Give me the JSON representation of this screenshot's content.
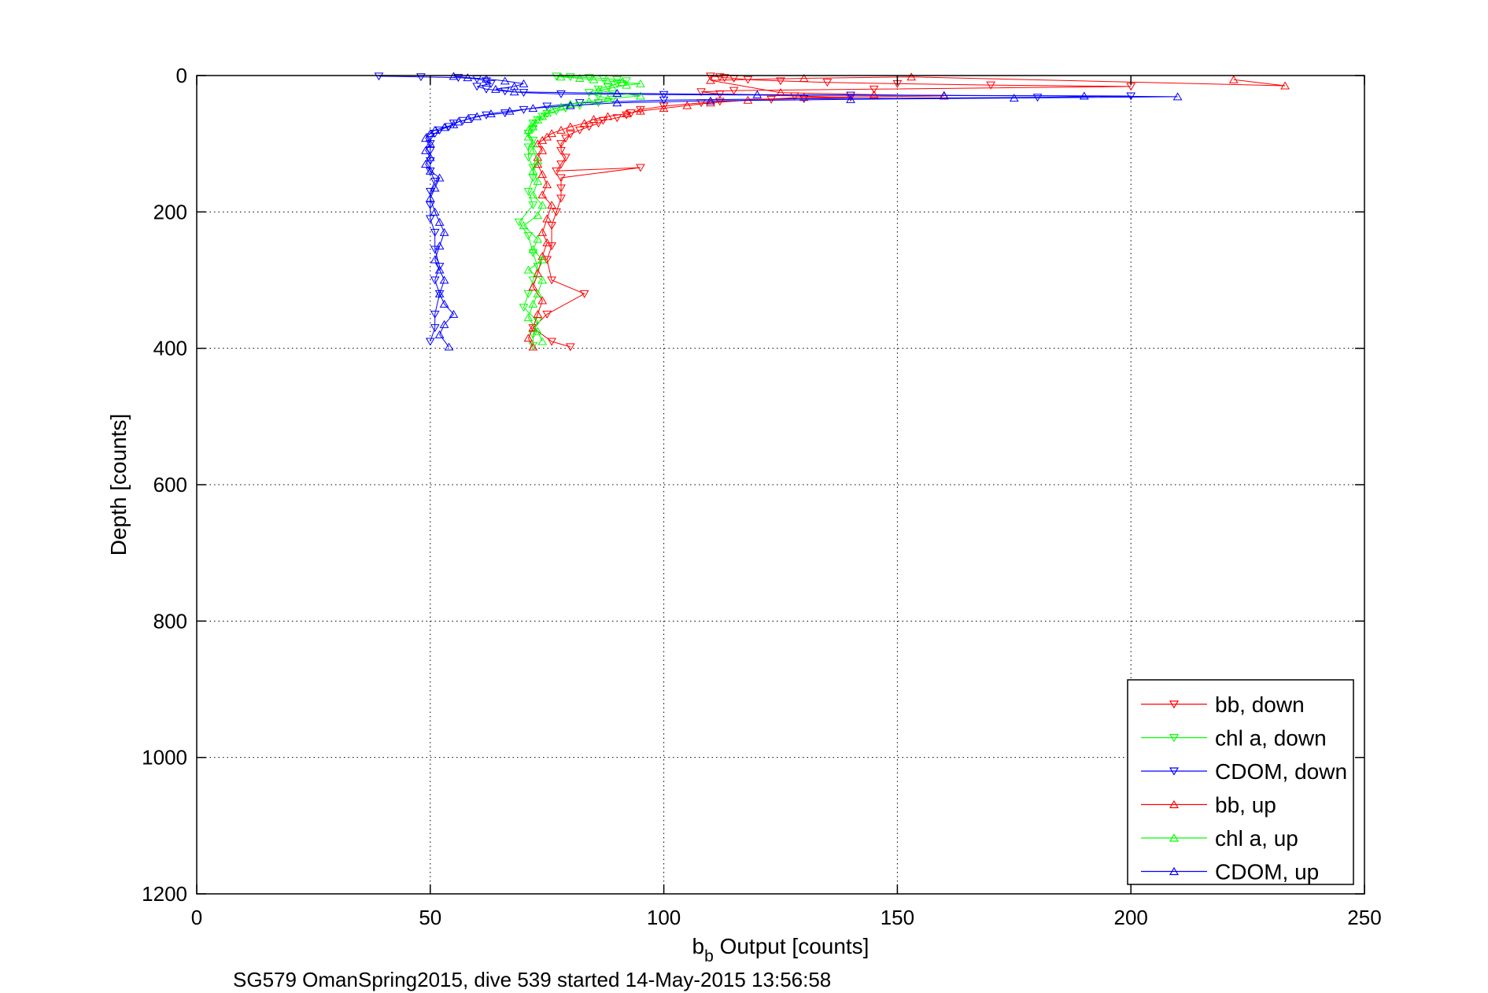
{
  "chart_data": {
    "type": "scatter",
    "xlabel_main": "b",
    "xlabel_sub": "b",
    "xlabel_rest": " Output [counts]",
    "ylabel": "Depth [counts]",
    "caption": "SG579 OmanSpring2015, dive 539 started 14-May-2015 13:56:58",
    "xlim": [
      0,
      250
    ],
    "ylim": [
      0,
      1200
    ],
    "y_reversed": true,
    "grid": true,
    "legend_position": "bottom-right",
    "x_ticks": [
      0,
      50,
      100,
      150,
      200,
      250
    ],
    "y_ticks": [
      0,
      200,
      400,
      600,
      800,
      1000,
      1200
    ],
    "series": [
      {
        "name": "bb, down",
        "color": "#ff0000",
        "marker": "triangle-down",
        "points": [
          [
            110,
            1
          ],
          [
            112,
            2
          ],
          [
            113,
            3
          ],
          [
            115,
            4
          ],
          [
            118,
            6
          ],
          [
            125,
            8
          ],
          [
            135,
            10
          ],
          [
            150,
            12
          ],
          [
            170,
            14
          ],
          [
            200,
            16
          ],
          [
            145,
            20
          ],
          [
            115,
            22
          ],
          [
            108,
            24
          ],
          [
            112,
            27
          ],
          [
            128,
            30
          ],
          [
            140,
            32
          ],
          [
            123,
            35
          ],
          [
            112,
            38
          ],
          [
            108,
            40
          ],
          [
            100,
            45
          ],
          [
            95,
            50
          ],
          [
            93,
            55
          ],
          [
            92,
            58
          ],
          [
            90,
            62
          ],
          [
            87,
            66
          ],
          [
            86,
            70
          ],
          [
            84,
            75
          ],
          [
            82,
            80
          ],
          [
            80,
            86
          ],
          [
            79,
            92
          ],
          [
            78,
            100
          ],
          [
            78,
            110
          ],
          [
            79,
            120
          ],
          [
            78,
            130
          ],
          [
            77,
            140
          ],
          [
            95,
            135
          ],
          [
            78,
            150
          ],
          [
            78,
            165
          ],
          [
            78,
            180
          ],
          [
            77,
            200
          ],
          [
            76,
            220
          ],
          [
            76,
            250
          ],
          [
            75,
            270
          ],
          [
            76,
            300
          ],
          [
            83,
            320
          ],
          [
            75,
            350
          ],
          [
            72,
            370
          ],
          [
            76,
            390
          ],
          [
            80,
            398
          ]
        ]
      },
      {
        "name": "chl a, down",
        "color": "#00ff00",
        "marker": "triangle-down",
        "points": [
          [
            77,
            1
          ],
          [
            80,
            2
          ],
          [
            84,
            3
          ],
          [
            87,
            4
          ],
          [
            90,
            6
          ],
          [
            92,
            8
          ],
          [
            90,
            12
          ],
          [
            88,
            16
          ],
          [
            86,
            20
          ],
          [
            84,
            25
          ],
          [
            86,
            30
          ],
          [
            89,
            35
          ],
          [
            86,
            40
          ],
          [
            82,
            44
          ],
          [
            79,
            48
          ],
          [
            77,
            52
          ],
          [
            75,
            56
          ],
          [
            74,
            60
          ],
          [
            73,
            65
          ],
          [
            72,
            70
          ],
          [
            72,
            78
          ],
          [
            71,
            85
          ],
          [
            72,
            95
          ],
          [
            71,
            105
          ],
          [
            71,
            120
          ],
          [
            72,
            135
          ],
          [
            72,
            150
          ],
          [
            71,
            170
          ],
          [
            72,
            190
          ],
          [
            69,
            215
          ],
          [
            71,
            235
          ],
          [
            72,
            260
          ],
          [
            73,
            280
          ],
          [
            72,
            300
          ],
          [
            71,
            320
          ],
          [
            70,
            340
          ],
          [
            73,
            360
          ],
          [
            72,
            380
          ],
          [
            72,
            396
          ]
        ]
      },
      {
        "name": "CDOM, down",
        "color": "#0000ff",
        "marker": "triangle-down",
        "points": [
          [
            39,
            1
          ],
          [
            48,
            2
          ],
          [
            56,
            3
          ],
          [
            60,
            5
          ],
          [
            62,
            8
          ],
          [
            63,
            12
          ],
          [
            60,
            16
          ],
          [
            62,
            20
          ],
          [
            66,
            23
          ],
          [
            70,
            25
          ],
          [
            78,
            27
          ],
          [
            100,
            28
          ],
          [
            140,
            29
          ],
          [
            200,
            30
          ],
          [
            180,
            32
          ],
          [
            130,
            34
          ],
          [
            100,
            36
          ],
          [
            82,
            40
          ],
          [
            75,
            45
          ],
          [
            70,
            50
          ],
          [
            66,
            55
          ],
          [
            62,
            58
          ],
          [
            59,
            62
          ],
          [
            57,
            66
          ],
          [
            55,
            70
          ],
          [
            54,
            75
          ],
          [
            52,
            80
          ],
          [
            51,
            85
          ],
          [
            50,
            90
          ],
          [
            50,
            100
          ],
          [
            50,
            110
          ],
          [
            50,
            125
          ],
          [
            50,
            140
          ],
          [
            51,
            155
          ],
          [
            50,
            170
          ],
          [
            50,
            190
          ],
          [
            50,
            210
          ],
          [
            51,
            230
          ],
          [
            51,
            255
          ],
          [
            52,
            280
          ],
          [
            51,
            300
          ],
          [
            52,
            320
          ],
          [
            51,
            350
          ],
          [
            51,
            370
          ],
          [
            50,
            390
          ]
        ]
      },
      {
        "name": "bb, up",
        "color": "#ff0000",
        "marker": "triangle-up",
        "points": [
          [
            222,
            6
          ],
          [
            233,
            15
          ],
          [
            153,
            2
          ],
          [
            130,
            4
          ],
          [
            110,
            7
          ],
          [
            125,
            25
          ],
          [
            145,
            28
          ],
          [
            160,
            30
          ],
          [
            130,
            32
          ],
          [
            118,
            36
          ],
          [
            110,
            40
          ],
          [
            105,
            44
          ],
          [
            100,
            48
          ],
          [
            95,
            52
          ],
          [
            92,
            56
          ],
          [
            88,
            60
          ],
          [
            85,
            64
          ],
          [
            83,
            70
          ],
          [
            80,
            75
          ],
          [
            78,
            80
          ],
          [
            76,
            85
          ],
          [
            75,
            90
          ],
          [
            74,
            95
          ],
          [
            73,
            100
          ],
          [
            74,
            110
          ],
          [
            73,
            120
          ],
          [
            73,
            130
          ],
          [
            74,
            145
          ],
          [
            75,
            160
          ],
          [
            74,
            175
          ],
          [
            76,
            190
          ],
          [
            75,
            210
          ],
          [
            74,
            230
          ],
          [
            75,
            245
          ],
          [
            74,
            265
          ],
          [
            73,
            290
          ],
          [
            72,
            310
          ],
          [
            74,
            330
          ],
          [
            73,
            350
          ],
          [
            72,
            370
          ],
          [
            71,
            385
          ],
          [
            72,
            398
          ]
        ]
      },
      {
        "name": "chl a, up",
        "color": "#00ff00",
        "marker": "triangle-up",
        "points": [
          [
            78,
            2
          ],
          [
            82,
            4
          ],
          [
            85,
            6
          ],
          [
            88,
            8
          ],
          [
            91,
            10
          ],
          [
            95,
            12
          ],
          [
            92,
            14
          ],
          [
            89,
            18
          ],
          [
            86,
            22
          ],
          [
            90,
            26
          ],
          [
            95,
            30
          ],
          [
            88,
            34
          ],
          [
            84,
            38
          ],
          [
            80,
            42
          ],
          [
            78,
            46
          ],
          [
            76,
            50
          ],
          [
            75,
            55
          ],
          [
            74,
            60
          ],
          [
            73,
            65
          ],
          [
            72,
            70
          ],
          [
            72,
            75
          ],
          [
            71,
            80
          ],
          [
            71,
            90
          ],
          [
            72,
            100
          ],
          [
            72,
            110
          ],
          [
            73,
            125
          ],
          [
            72,
            140
          ],
          [
            73,
            155
          ],
          [
            72,
            175
          ],
          [
            74,
            190
          ],
          [
            73,
            205
          ],
          [
            70,
            220
          ],
          [
            73,
            240
          ],
          [
            72,
            255
          ],
          [
            74,
            270
          ],
          [
            71,
            285
          ],
          [
            74,
            300
          ],
          [
            73,
            320
          ],
          [
            72,
            335
          ],
          [
            71,
            355
          ],
          [
            73,
            375
          ],
          [
            74,
            390
          ]
        ]
      },
      {
        "name": "CDOM, up",
        "color": "#0000ff",
        "marker": "triangle-up",
        "points": [
          [
            55,
            1
          ],
          [
            58,
            3
          ],
          [
            62,
            5
          ],
          [
            66,
            8
          ],
          [
            70,
            12
          ],
          [
            68,
            16
          ],
          [
            64,
            20
          ],
          [
            68,
            24
          ],
          [
            90,
            26
          ],
          [
            120,
            28
          ],
          [
            160,
            29
          ],
          [
            190,
            30
          ],
          [
            210,
            31
          ],
          [
            175,
            33
          ],
          [
            140,
            35
          ],
          [
            110,
            37
          ],
          [
            90,
            40
          ],
          [
            80,
            44
          ],
          [
            72,
            48
          ],
          [
            67,
            52
          ],
          [
            63,
            56
          ],
          [
            60,
            60
          ],
          [
            58,
            64
          ],
          [
            56,
            68
          ],
          [
            55,
            72
          ],
          [
            53,
            76
          ],
          [
            51,
            80
          ],
          [
            50,
            85
          ],
          [
            49,
            92
          ],
          [
            50,
            100
          ],
          [
            49,
            110
          ],
          [
            50,
            120
          ],
          [
            49,
            130
          ],
          [
            50,
            140
          ],
          [
            52,
            150
          ],
          [
            51,
            165
          ],
          [
            50,
            180
          ],
          [
            51,
            200
          ],
          [
            52,
            215
          ],
          [
            53,
            230
          ],
          [
            52,
            250
          ],
          [
            51,
            270
          ],
          [
            52,
            285
          ],
          [
            53,
            300
          ],
          [
            52,
            320
          ],
          [
            53,
            335
          ],
          [
            55,
            350
          ],
          [
            53,
            365
          ],
          [
            52,
            380
          ],
          [
            54,
            398
          ]
        ]
      }
    ]
  }
}
